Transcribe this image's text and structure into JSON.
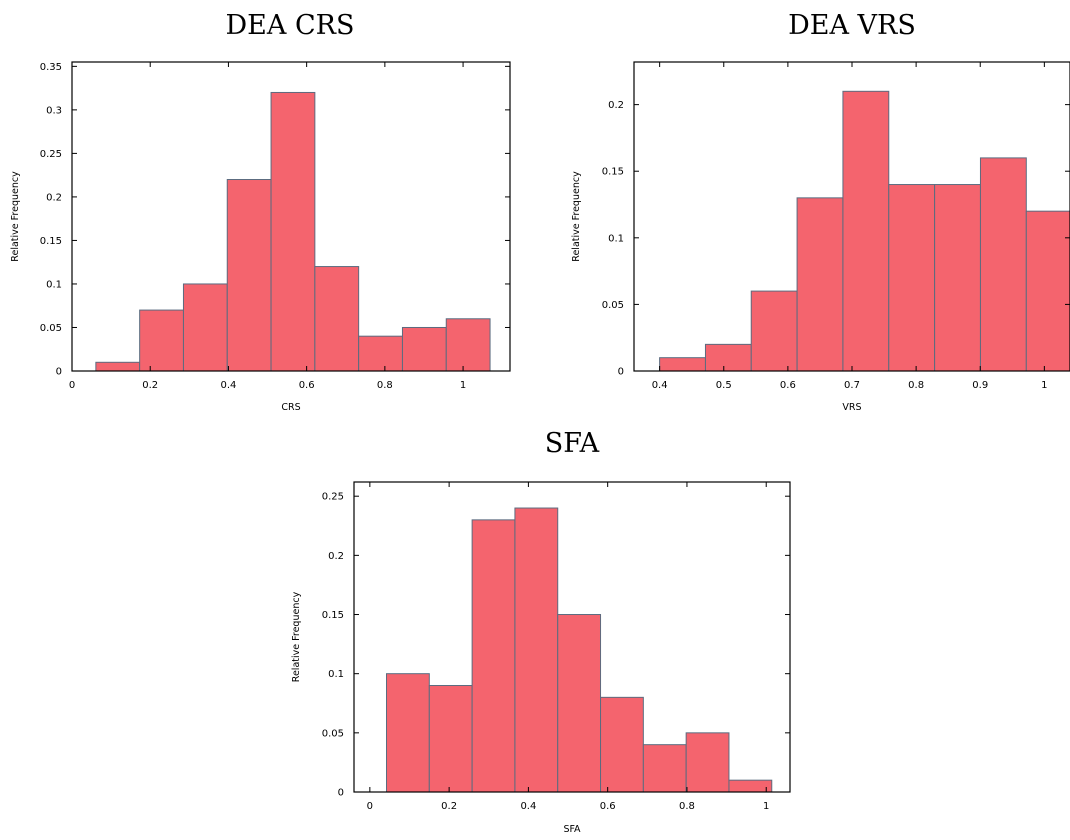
{
  "chart_data": [
    {
      "type": "bar",
      "title": "DEA CRS",
      "xlabel": "CRS",
      "ylabel": "Relative Frequency",
      "xlim": [
        0,
        1.12
      ],
      "ylim": [
        0,
        0.355
      ],
      "xticks": [
        "0",
        "0.2",
        "0.4",
        "0.6",
        "0.8",
        "1"
      ],
      "xtick_values": [
        0,
        0.2,
        0.4,
        0.6,
        0.8,
        1
      ],
      "yticks": [
        "0",
        "0.05",
        "0.1",
        "0.15",
        "0.2",
        "0.25",
        "0.3",
        "0.35"
      ],
      "ytick_values": [
        0,
        0.05,
        0.1,
        0.15,
        0.2,
        0.25,
        0.3,
        0.35
      ],
      "bin_width": 0.112,
      "bin_centers": [
        0.117,
        0.229,
        0.341,
        0.453,
        0.565,
        0.677,
        0.789,
        0.901,
        1.013
      ],
      "values": [
        0.01,
        0.07,
        0.1,
        0.22,
        0.32,
        0.12,
        0.04,
        0.05,
        0.06
      ],
      "color": "#f4646e"
    },
    {
      "type": "bar",
      "title": "DEA VRS",
      "xlabel": "VRS",
      "ylabel": "Relative Frequency",
      "xlim": [
        0.36,
        1.04
      ],
      "ylim": [
        0,
        0.232
      ],
      "xticks": [
        "0.4",
        "0.5",
        "0.6",
        "0.7",
        "0.8",
        "0.9",
        "1"
      ],
      "xtick_values": [
        0.4,
        0.5,
        0.6,
        0.7,
        0.8,
        0.9,
        1
      ],
      "yticks": [
        "0",
        "0.05",
        "0.1",
        "0.15",
        "0.2"
      ],
      "ytick_values": [
        0,
        0.05,
        0.1,
        0.15,
        0.2
      ],
      "bin_width": 0.0715,
      "bin_centers": [
        0.4357,
        0.5072,
        0.5786,
        0.6501,
        0.7216,
        0.7931,
        0.8646,
        0.9361,
        1.0076
      ],
      "values": [
        0.01,
        0.02,
        0.06,
        0.13,
        0.21,
        0.14,
        0.14,
        0.16,
        0.12
      ],
      "color": "#f4646e"
    },
    {
      "type": "bar",
      "title": "SFA",
      "xlabel": "SFA",
      "ylabel": "Relative Frequency",
      "xlim": [
        -0.04,
        1.06
      ],
      "ylim": [
        0,
        0.262
      ],
      "xticks": [
        "0",
        "0.2",
        "0.4",
        "0.6",
        "0.8",
        "1"
      ],
      "xtick_values": [
        0,
        0.2,
        0.4,
        0.6,
        0.8,
        1
      ],
      "yticks": [
        "0",
        "0.05",
        "0.1",
        "0.15",
        "0.2",
        "0.25"
      ],
      "ytick_values": [
        0,
        0.05,
        0.1,
        0.15,
        0.2,
        0.25
      ],
      "bin_width": 0.108,
      "bin_centers": [
        0.096,
        0.204,
        0.312,
        0.42,
        0.528,
        0.636,
        0.744,
        0.852,
        0.96
      ],
      "values": [
        0.1,
        0.09,
        0.23,
        0.24,
        0.15,
        0.08,
        0.04,
        0.05,
        0.01
      ],
      "color": "#f4646e"
    }
  ]
}
